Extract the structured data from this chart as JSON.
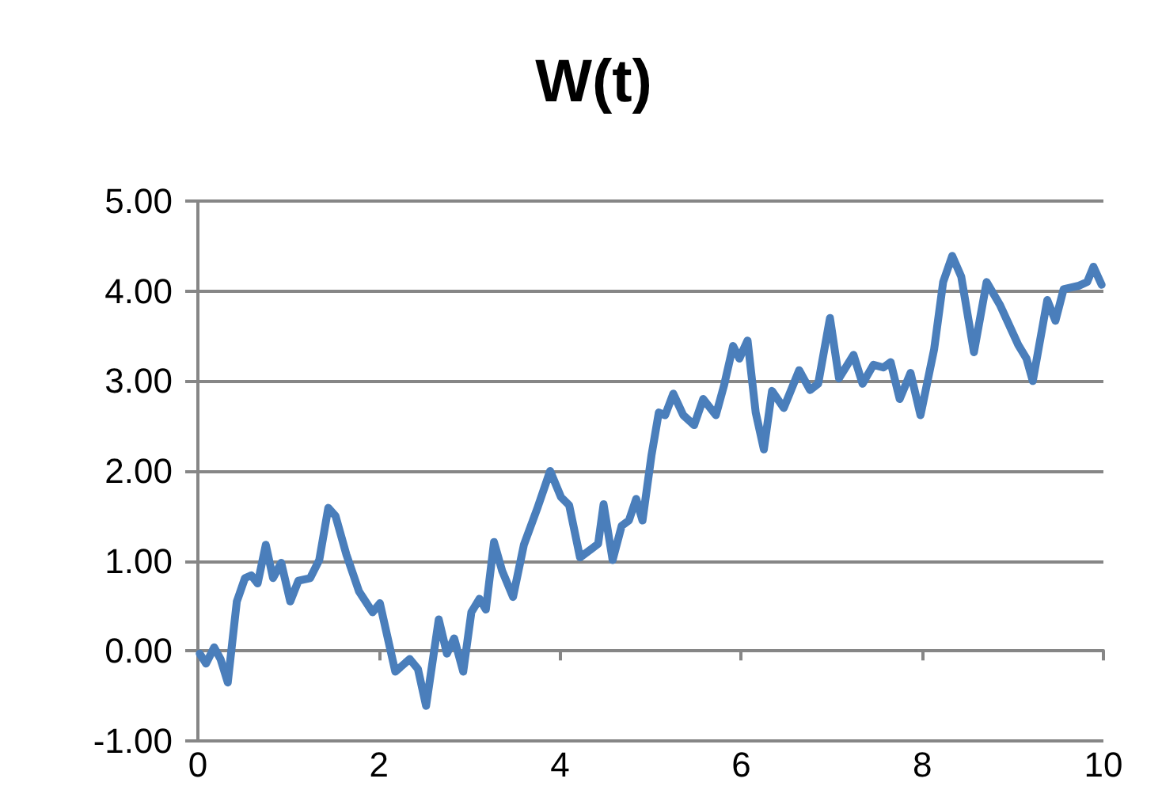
{
  "chart_data": {
    "type": "line",
    "title": "W(t)",
    "series": [
      {
        "color": "#4a7ebb",
        "x": [
          0.02,
          0.09,
          0.18,
          0.25,
          0.33,
          0.43,
          0.52,
          0.59,
          0.66,
          0.75,
          0.83,
          0.92,
          1.02,
          1.11,
          1.24,
          1.34,
          1.44,
          1.52,
          1.64,
          1.78,
          1.93,
          2.01,
          2.18,
          2.34,
          2.43,
          2.52,
          2.66,
          2.75,
          2.83,
          2.93,
          3.02,
          3.11,
          3.18,
          3.27,
          3.36,
          3.48,
          3.6,
          3.75,
          3.89,
          4.01,
          4.1,
          4.22,
          4.34,
          4.42,
          4.48,
          4.58,
          4.68,
          4.76,
          4.84,
          4.91,
          5.01,
          5.09,
          5.16,
          5.25,
          5.36,
          5.48,
          5.58,
          5.72,
          5.81,
          5.91,
          5.98,
          6.07,
          6.16,
          6.25,
          6.34,
          6.47,
          6.64,
          6.76,
          6.85,
          6.98,
          7.08,
          7.24,
          7.34,
          7.46,
          7.57,
          7.65,
          7.75,
          7.87,
          7.98,
          8.13,
          8.23,
          8.33,
          8.43,
          8.57,
          8.71,
          8.86,
          9.06,
          9.15,
          9.22,
          9.38,
          9.47,
          9.56,
          9.73,
          9.82,
          9.89,
          9.98
        ],
        "values": [
          -0.03,
          -0.14,
          0.04,
          -0.09,
          -0.35,
          0.55,
          0.81,
          0.84,
          0.75,
          1.18,
          0.81,
          0.98,
          0.55,
          0.78,
          0.81,
          1.01,
          1.59,
          1.5,
          1.07,
          0.66,
          0.43,
          0.53,
          -0.23,
          -0.09,
          -0.2,
          -0.61,
          0.35,
          -0.03,
          0.14,
          -0.23,
          0.43,
          0.58,
          0.46,
          1.21,
          0.89,
          0.6,
          1.18,
          1.59,
          2.0,
          1.71,
          1.62,
          1.04,
          1.13,
          1.19,
          1.63,
          1.01,
          1.39,
          1.45,
          1.69,
          1.45,
          2.18,
          2.65,
          2.62,
          2.86,
          2.62,
          2.51,
          2.8,
          2.62,
          2.95,
          3.39,
          3.25,
          3.45,
          2.65,
          2.24,
          2.89,
          2.7,
          3.12,
          2.9,
          2.97,
          3.7,
          3.03,
          3.29,
          2.97,
          3.18,
          3.15,
          3.21,
          2.8,
          3.09,
          2.62,
          3.35,
          4.1,
          4.39,
          4.16,
          3.32,
          4.1,
          3.84,
          3.4,
          3.25,
          3.0,
          3.9,
          3.67,
          4.02,
          4.06,
          4.1,
          4.27,
          4.07
        ]
      }
    ],
    "xlim": [
      0,
      10
    ],
    "xticks": [
      0,
      2,
      4,
      6,
      8,
      10
    ],
    "ylim": [
      -1,
      5
    ],
    "yticks": [
      {
        "value": -1,
        "label": "-1.00"
      },
      {
        "value": 0,
        "label": "0.00"
      },
      {
        "value": 1,
        "label": "1.00"
      },
      {
        "value": 2,
        "label": "2.00"
      },
      {
        "value": 3,
        "label": "3.00"
      },
      {
        "value": 4,
        "label": "4.00"
      },
      {
        "value": 5,
        "label": "5.00"
      }
    ],
    "grid": "y",
    "marker": "none",
    "line_style": "solid"
  }
}
